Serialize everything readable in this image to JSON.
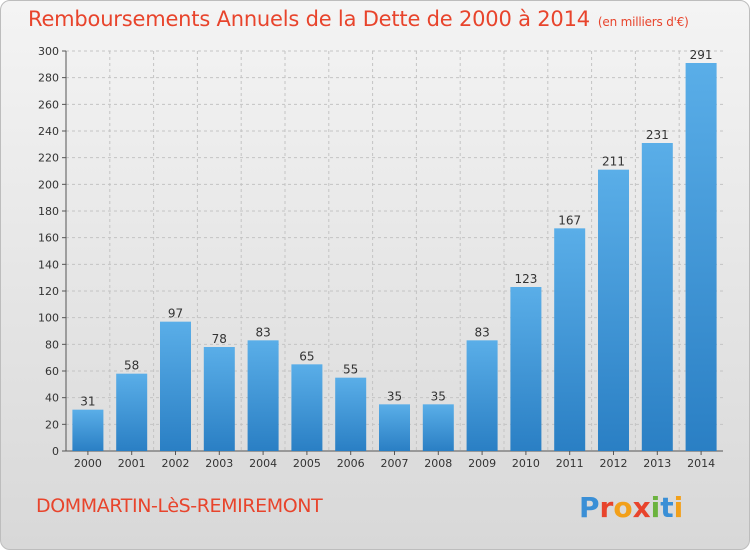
{
  "header": {
    "title": "Remboursements Annuels de la Dette de 2000 à 2014",
    "subtitle": "(en milliers d'€)"
  },
  "footer": {
    "commune": "DOMMARTIN-LèS-REMIREMONT",
    "logo_text": "Proxiti",
    "logo_colors": [
      "#3a8fd6",
      "#e8442c",
      "#f2a01a",
      "#e8442c",
      "#6cb33f",
      "#3a8fd6",
      "#f2a01a"
    ]
  },
  "chart_data": {
    "type": "bar",
    "title": "Remboursements Annuels de la Dette de 2000 à 2014",
    "subtitle": "(en milliers d'€)",
    "categories": [
      "2000",
      "2001",
      "2002",
      "2003",
      "2004",
      "2005",
      "2006",
      "2007",
      "2008",
      "2009",
      "2010",
      "2011",
      "2012",
      "2013",
      "2014"
    ],
    "values": [
      31,
      58,
      97,
      78,
      83,
      65,
      55,
      35,
      35,
      83,
      123,
      167,
      211,
      231,
      291
    ],
    "yticks": [
      0,
      20,
      40,
      60,
      80,
      100,
      120,
      140,
      160,
      180,
      200,
      220,
      240,
      260,
      280,
      300
    ],
    "ylim": [
      0,
      300
    ],
    "xlabel": "",
    "ylabel": "",
    "grid": true,
    "bar_color_top": "#5aaee8",
    "bar_color_bottom": "#2a7fc4"
  }
}
